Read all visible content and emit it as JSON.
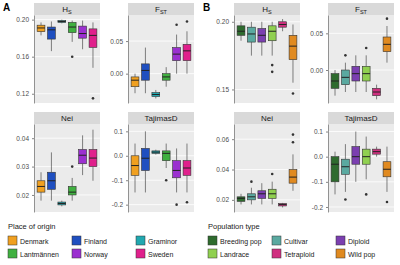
{
  "chart_data": [
    {
      "type": "box",
      "title": "A",
      "legend_title": "Place of origin",
      "tick_labels": "y",
      "grid": true,
      "series": [
        {
          "name": "Denmark",
          "color": "#f0a020"
        },
        {
          "name": "Finland",
          "color": "#1f4fc0"
        },
        {
          "name": "Graminor",
          "color": "#20a8b0"
        },
        {
          "name": "Lantmännen",
          "color": "#40b040"
        },
        {
          "name": "Norway",
          "color": "#9b30d0"
        },
        {
          "name": "Sweden",
          "color": "#e0208c"
        }
      ],
      "facets": [
        {
          "title": "HS",
          "ylim": [
            0.11,
            0.205
          ],
          "yticks": [
            0.12,
            0.16,
            {
              "value": 0.2,
              "label": "0.20"
            }
          ],
          "boxes": [
            {
              "min": 0.183,
              "q1": 0.187,
              "median": 0.191,
              "q3": 0.194,
              "max": 0.197,
              "outliers": []
            },
            {
              "min": 0.166,
              "q1": 0.179,
              "median": 0.189,
              "q3": 0.192,
              "max": 0.198,
              "outliers": []
            },
            {
              "min": 0.196,
              "q1": 0.197,
              "median": 0.198,
              "q3": 0.199,
              "max": 0.2,
              "outliers": []
            },
            {
              "min": 0.176,
              "q1": 0.186,
              "median": 0.192,
              "q3": 0.197,
              "max": 0.199,
              "outliers": [
                0.16
              ]
            },
            {
              "min": 0.168,
              "q1": 0.18,
              "median": 0.185,
              "q3": 0.193,
              "max": 0.199,
              "outliers": []
            },
            {
              "min": 0.148,
              "q1": 0.17,
              "median": 0.183,
              "q3": 0.19,
              "max": 0.197,
              "outliers": [
                0.115
              ]
            }
          ]
        },
        {
          "title": "FST",
          "ylim": [
            -0.045,
            0.09
          ],
          "yticks": [
            {
              "value": 0,
              "label": "0.00"
            },
            0.05
          ],
          "boxes": [
            {
              "min": -0.03,
              "q1": -0.02,
              "median": -0.01,
              "q3": -0.005,
              "max": 0,
              "outliers": []
            },
            {
              "min": -0.03,
              "q1": -0.01,
              "median": 0.005,
              "q3": 0.015,
              "max": 0.04,
              "outliers": []
            },
            {
              "min": -0.038,
              "q1": -0.035,
              "median": -0.032,
              "q3": -0.029,
              "max": -0.025,
              "outliers": []
            },
            {
              "min": -0.02,
              "q1": -0.01,
              "median": -0.005,
              "q3": 0,
              "max": 0.01,
              "outliers": []
            },
            {
              "min": 0,
              "q1": 0.02,
              "median": 0.03,
              "q3": 0.04,
              "max": 0.06,
              "outliers": [
                0.075
              ]
            },
            {
              "min": 0,
              "q1": 0.02,
              "median": 0.035,
              "q3": 0.045,
              "max": 0.065,
              "outliers": [
                0.08
              ]
            }
          ]
        },
        {
          "title": "Nei",
          "ylim": [
            0.014,
            0.045
          ],
          "yticks": [
            0.02,
            0.03,
            0.04
          ],
          "boxes": [
            {
              "min": 0.018,
              "q1": 0.021,
              "median": 0.023,
              "q3": 0.025,
              "max": 0.028,
              "outliers": []
            },
            {
              "min": 0.018,
              "q1": 0.022,
              "median": 0.025,
              "q3": 0.028,
              "max": 0.035,
              "outliers": []
            },
            {
              "min": 0.016,
              "q1": 0.0165,
              "median": 0.017,
              "q3": 0.0175,
              "max": 0.018,
              "outliers": []
            },
            {
              "min": 0.018,
              "q1": 0.02,
              "median": 0.021,
              "q3": 0.023,
              "max": 0.026,
              "outliers": [
                0.03
              ]
            },
            {
              "min": 0.027,
              "q1": 0.031,
              "median": 0.034,
              "q3": 0.036,
              "max": 0.041,
              "outliers": []
            },
            {
              "min": 0.025,
              "q1": 0.03,
              "median": 0.033,
              "q3": 0.036,
              "max": 0.043,
              "outliers": []
            }
          ]
        },
        {
          "title": "TajimasD",
          "ylim": [
            -0.23,
            0.13
          ],
          "yticks": [
            -0.2,
            -0.1,
            {
              "value": 0,
              "label": "0.0"
            },
            0.1
          ],
          "boxes": [
            {
              "min": -0.15,
              "q1": -0.08,
              "median": -0.04,
              "q3": 0,
              "max": 0.05,
              "outliers": []
            },
            {
              "min": -0.15,
              "q1": -0.06,
              "median": -0.01,
              "q3": 0.03,
              "max": 0.1,
              "outliers": []
            },
            {
              "min": 0.005,
              "q1": 0.01,
              "median": 0.015,
              "q3": 0.02,
              "max": 0.025,
              "outliers": []
            },
            {
              "min": -0.05,
              "q1": -0.02,
              "median": 0.01,
              "q3": 0.02,
              "max": 0.05,
              "outliers": [
                -0.1
              ]
            },
            {
              "min": -0.15,
              "q1": -0.09,
              "median": -0.06,
              "q3": -0.02,
              "max": 0.03,
              "outliers": [
                -0.2
              ]
            },
            {
              "min": -0.15,
              "q1": -0.08,
              "median": -0.05,
              "q3": -0.02,
              "max": 0.05,
              "outliers": [
                -0.19
              ]
            }
          ]
        }
      ]
    },
    {
      "type": "box",
      "title": "B",
      "legend_title": "Population type",
      "tick_labels": "y",
      "grid": true,
      "series": [
        {
          "name": "Breeding pop",
          "color": "#2e6b2e"
        },
        {
          "name": "Cultivar",
          "color": "#5aa9a0"
        },
        {
          "name": "Diploid",
          "color": "#7b3fb0"
        },
        {
          "name": "Landrace",
          "color": "#90d050"
        },
        {
          "name": "Tetraploid",
          "color": "#d03080"
        },
        {
          "name": "Wild pop",
          "color": "#e08a20"
        }
      ],
      "facets": [
        {
          "title": "HS",
          "ylim": [
            0.14,
            0.205
          ],
          "yticks": [
            0.15,
            {
              "value": 0.2,
              "label": "0.20"
            }
          ],
          "boxes": [
            {
              "min": 0.186,
              "q1": 0.19,
              "median": 0.193,
              "q3": 0.197,
              "max": 0.2,
              "outliers": []
            },
            {
              "min": 0.175,
              "q1": 0.185,
              "median": 0.191,
              "q3": 0.196,
              "max": 0.2,
              "outliers": []
            },
            {
              "min": 0.175,
              "q1": 0.185,
              "median": 0.19,
              "q3": 0.195,
              "max": 0.2,
              "outliers": []
            },
            {
              "min": 0.175,
              "q1": 0.186,
              "median": 0.193,
              "q3": 0.197,
              "max": 0.2,
              "outliers": [
                0.163,
                0.168
              ]
            },
            {
              "min": 0.193,
              "q1": 0.196,
              "median": 0.198,
              "q3": 0.2,
              "max": 0.202,
              "outliers": []
            },
            {
              "min": 0.155,
              "q1": 0.172,
              "median": 0.182,
              "q3": 0.19,
              "max": 0.198,
              "outliers": [
                0.147
              ]
            }
          ]
        },
        {
          "title": "FST",
          "ylim": [
            -0.045,
            0.075
          ],
          "yticks": [
            {
              "value": 0,
              "label": "0.00"
            },
            0.05
          ],
          "boxes": [
            {
              "min": -0.035,
              "q1": -0.025,
              "median": -0.015,
              "q3": -0.005,
              "max": 0,
              "outliers": []
            },
            {
              "min": -0.03,
              "q1": -0.02,
              "median": -0.01,
              "q3": 0,
              "max": 0.01,
              "outliers": [
                0.02
              ]
            },
            {
              "min": -0.03,
              "q1": -0.015,
              "median": -0.005,
              "q3": 0.005,
              "max": 0.02,
              "outliers": []
            },
            {
              "min": -0.03,
              "q1": -0.015,
              "median": -0.005,
              "q3": 0.005,
              "max": 0.02,
              "outliers": [
                0.03
              ]
            },
            {
              "min": -0.04,
              "q1": -0.035,
              "median": -0.03,
              "q3": -0.025,
              "max": -0.02,
              "outliers": []
            },
            {
              "min": 0.01,
              "q1": 0.025,
              "median": 0.035,
              "q3": 0.045,
              "max": 0.06,
              "outliers": [
                0.07
              ]
            }
          ]
        },
        {
          "title": "Nei",
          "ylim": [
            0.012,
            0.07
          ],
          "yticks": [
            0.02,
            0.04,
            0.06
          ],
          "boxes": [
            {
              "min": 0.017,
              "q1": 0.019,
              "median": 0.021,
              "q3": 0.022,
              "max": 0.024,
              "outliers": []
            },
            {
              "min": 0.017,
              "q1": 0.02,
              "median": 0.022,
              "q3": 0.024,
              "max": 0.028,
              "outliers": [
                0.032
              ]
            },
            {
              "min": 0.017,
              "q1": 0.021,
              "median": 0.024,
              "q3": 0.026,
              "max": 0.031,
              "outliers": []
            },
            {
              "min": 0.017,
              "q1": 0.021,
              "median": 0.024,
              "q3": 0.027,
              "max": 0.032,
              "outliers": [
                0.037
              ]
            },
            {
              "min": 0.015,
              "q1": 0.016,
              "median": 0.017,
              "q3": 0.0175,
              "max": 0.018,
              "outliers": []
            },
            {
              "min": 0.026,
              "q1": 0.031,
              "median": 0.035,
              "q3": 0.04,
              "max": 0.05,
              "outliers": [
                0.058,
                0.063
              ]
            }
          ]
        },
        {
          "title": "TajimasD",
          "ylim": [
            -0.22,
            0.13
          ],
          "yticks": [
            -0.2,
            -0.1,
            {
              "value": 0,
              "label": "0.0"
            },
            0.1
          ],
          "boxes": [
            {
              "min": -0.15,
              "q1": -0.1,
              "median": -0.03,
              "q3": 0,
              "max": 0.02,
              "outliers": []
            },
            {
              "min": -0.14,
              "q1": -0.07,
              "median": -0.04,
              "q3": -0.01,
              "max": 0.05,
              "outliers": [
                -0.17
              ]
            },
            {
              "min": -0.1,
              "q1": -0.03,
              "median": 0,
              "q3": 0.04,
              "max": 0.1,
              "outliers": []
            },
            {
              "min": -0.09,
              "q1": -0.03,
              "median": 0,
              "q3": 0.03,
              "max": 0.08,
              "outliers": [
                -0.15
              ]
            },
            {
              "min": 0,
              "q1": 0.01,
              "median": 0.02,
              "q3": 0.03,
              "max": 0.04,
              "outliers": []
            },
            {
              "min": -0.14,
              "q1": -0.08,
              "median": -0.05,
              "q3": -0.02,
              "max": 0.04,
              "outliers": [
                -0.18
              ]
            }
          ]
        }
      ]
    }
  ]
}
